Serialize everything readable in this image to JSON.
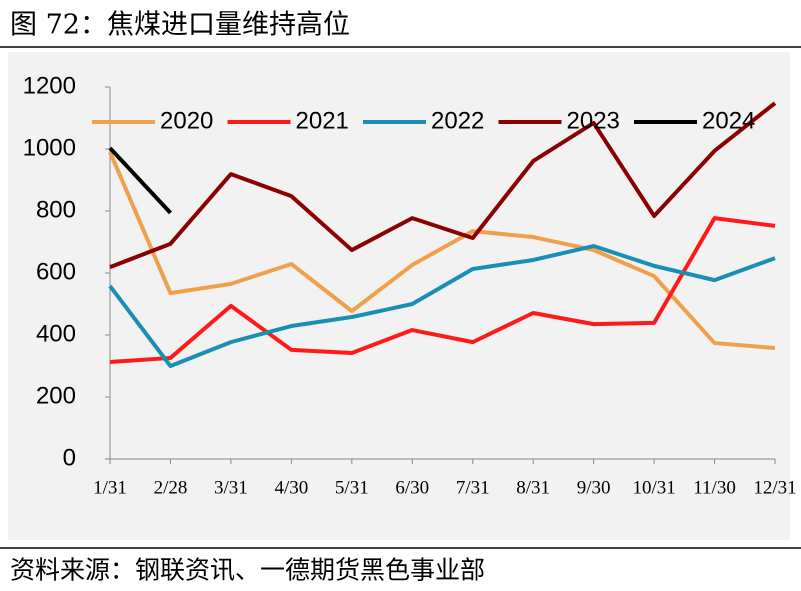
{
  "chart_data": {
    "type": "line",
    "title": "图 72：焦煤进口量维持高位",
    "source": "资料来源：钢联资讯、一德期货黑色事业部",
    "categories": [
      "1/31",
      "2/28",
      "3/31",
      "4/30",
      "5/31",
      "6/30",
      "7/31",
      "8/31",
      "9/30",
      "10/31",
      "11/30",
      "12/31"
    ],
    "series": [
      {
        "name": "2020",
        "color": "#f0a04b",
        "values": [
          990,
          535,
          565,
          629,
          477,
          626,
          735,
          716,
          674,
          590,
          374,
          358
        ]
      },
      {
        "name": "2021",
        "color": "#ff1a1a",
        "values": [
          313,
          326,
          494,
          352,
          342,
          416,
          377,
          471,
          435,
          439,
          777,
          752
        ]
      },
      {
        "name": "2022",
        "color": "#1a8fb4",
        "values": [
          558,
          300,
          377,
          429,
          458,
          500,
          613,
          642,
          687,
          623,
          577,
          648
        ]
      },
      {
        "name": "2023",
        "color": "#8b0000",
        "values": [
          619,
          694,
          919,
          848,
          674,
          777,
          713,
          961,
          1084,
          784,
          994,
          1148
        ]
      },
      {
        "name": "2024",
        "color": "#000000",
        "values": [
          1003,
          794,
          null,
          null,
          null,
          null,
          null,
          null,
          null,
          null,
          null,
          null
        ]
      }
    ],
    "ylim": [
      0,
      1200
    ],
    "yticks": [
      0,
      200,
      400,
      600,
      800,
      1000,
      1200
    ],
    "grid": false,
    "legend": "top"
  }
}
